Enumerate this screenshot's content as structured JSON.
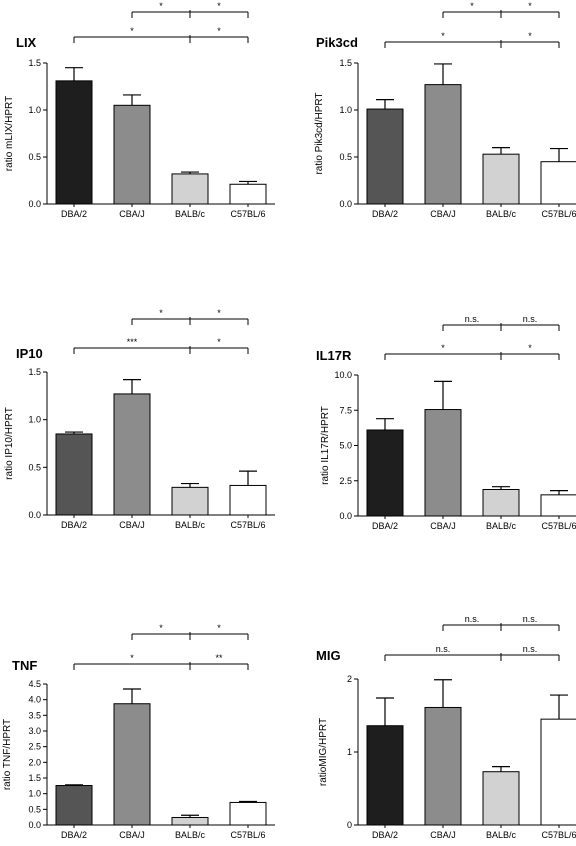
{
  "chart_data": [
    {
      "type": "bar",
      "title": "LIX",
      "ylabel": "ratio mLIX/HPRT",
      "categories": [
        "DBA/2",
        "CBA/J",
        "BALB/c",
        "C57BL/6"
      ],
      "values": [
        1.31,
        1.05,
        0.32,
        0.21
      ],
      "errors": [
        0.14,
        0.11,
        0.02,
        0.03
      ],
      "ylim": [
        0,
        1.5
      ],
      "yticks": [
        "0.0",
        "0.5",
        "1.0",
        "1.5"
      ],
      "ytick_values": [
        0,
        0.5,
        1.0,
        1.5
      ],
      "bar_colors": [
        "#1e1e1e",
        "#8c8c8c",
        "#d2d2d2",
        "#ffffff"
      ],
      "brackets": [
        {
          "from": 1,
          "mid": 2,
          "to": 3,
          "left_label": "*",
          "right_label": "*"
        },
        {
          "from": 0,
          "mid": 2,
          "to": 3,
          "left_label": "*",
          "right_label": "*"
        }
      ]
    },
    {
      "type": "bar",
      "title": "Pik3cd",
      "ylabel": "ratio Pik3cd/HPRT",
      "categories": [
        "DBA/2",
        "CBA/J",
        "BALB/c",
        "C57BL/6"
      ],
      "values": [
        1.01,
        1.27,
        0.53,
        0.45
      ],
      "errors": [
        0.1,
        0.22,
        0.07,
        0.14
      ],
      "ylim": [
        0,
        1.5
      ],
      "yticks": [
        "0.0",
        "0.5",
        "1.0",
        "1.5"
      ],
      "ytick_values": [
        0,
        0.5,
        1.0,
        1.5
      ],
      "bar_colors": [
        "#555555",
        "#8c8c8c",
        "#d2d2d2",
        "#ffffff"
      ],
      "brackets": [
        {
          "from": 1,
          "mid": 2,
          "to": 3,
          "left_label": "*",
          "right_label": "*"
        },
        {
          "from": 0,
          "mid": 2,
          "to": 3,
          "left_label": "*",
          "right_label": "*"
        }
      ]
    },
    {
      "type": "bar",
      "title": "IP10",
      "ylabel": "ratio IP10/HPRT",
      "categories": [
        "DBA/2",
        "CBA/J",
        "BALB/c",
        "C57BL/6"
      ],
      "values": [
        0.85,
        1.27,
        0.29,
        0.31
      ],
      "errors": [
        0.02,
        0.15,
        0.04,
        0.15
      ],
      "ylim": [
        0,
        1.5
      ],
      "yticks": [
        "0.0",
        "0.5",
        "1.0",
        "1.5"
      ],
      "ytick_values": [
        0,
        0.5,
        1.0,
        1.5
      ],
      "bar_colors": [
        "#555555",
        "#8c8c8c",
        "#d2d2d2",
        "#ffffff"
      ],
      "brackets": [
        {
          "from": 1,
          "mid": 2,
          "to": 3,
          "left_label": "*",
          "right_label": "*"
        },
        {
          "from": 0,
          "mid": 2,
          "to": 3,
          "left_label": "***",
          "right_label": "*"
        }
      ]
    },
    {
      "type": "bar",
      "title": "IL17R",
      "ylabel": "ratio IL17R/HPRT",
      "categories": [
        "DBA/2",
        "CBA/J",
        "BALB/c",
        "C57BL/6"
      ],
      "values": [
        6.1,
        7.55,
        1.88,
        1.5
      ],
      "errors": [
        0.8,
        2.0,
        0.2,
        0.3
      ],
      "ylim": [
        0,
        10
      ],
      "yticks": [
        "0.0",
        "2.5",
        "5.0",
        "7.5",
        "10.0"
      ],
      "ytick_values": [
        0,
        2.5,
        5.0,
        7.5,
        10.0
      ],
      "bar_colors": [
        "#1e1e1e",
        "#8c8c8c",
        "#d2d2d2",
        "#ffffff"
      ],
      "brackets": [
        {
          "from": 1,
          "mid": 2,
          "to": 3,
          "left_label": "n.s.",
          "right_label": "n.s."
        },
        {
          "from": 0,
          "mid": 2,
          "to": 3,
          "left_label": "*",
          "right_label": "*"
        }
      ]
    },
    {
      "type": "bar",
      "title": "TNF",
      "ylabel": "ratio TNF/HPRT",
      "categories": [
        "DBA/2",
        "CBA/J",
        "BALB/c",
        "C57BL/6"
      ],
      "values": [
        1.26,
        3.87,
        0.24,
        0.72
      ],
      "errors": [
        0.02,
        0.47,
        0.07,
        0.03
      ],
      "ylim": [
        0,
        4.5
      ],
      "yticks": [
        "0.0",
        "0.5",
        "1.0",
        "1.5",
        "2.0",
        "2.5",
        "3.0",
        "3.5",
        "4.0",
        "4.5"
      ],
      "ytick_values": [
        0,
        0.5,
        1.0,
        1.5,
        2.0,
        2.5,
        3.0,
        3.5,
        4.0,
        4.5
      ],
      "bar_colors": [
        "#555555",
        "#8c8c8c",
        "#d2d2d2",
        "#ffffff"
      ],
      "brackets": [
        {
          "from": 1,
          "mid": 2,
          "to": 3,
          "left_label": "*",
          "right_label": "*"
        },
        {
          "from": 0,
          "mid": 2,
          "to": 3,
          "left_label": "*",
          "right_label": "**"
        }
      ]
    },
    {
      "type": "bar",
      "title": "MIG",
      "ylabel": "ratioMIG/HPRT",
      "categories": [
        "DBA/2",
        "CBA/J",
        "BALB/c",
        "C57BL/6"
      ],
      "values": [
        1.36,
        1.61,
        0.73,
        1.45
      ],
      "errors": [
        0.38,
        0.38,
        0.07,
        0.33
      ],
      "ylim": [
        0,
        2
      ],
      "yticks": [
        "0",
        "1",
        "2"
      ],
      "ytick_values": [
        0,
        1,
        2
      ],
      "bar_colors": [
        "#1e1e1e",
        "#8c8c8c",
        "#d2d2d2",
        "#ffffff"
      ],
      "brackets": [
        {
          "from": 1,
          "mid": 2,
          "to": 3,
          "left_label": "n.s.",
          "right_label": "n.s."
        },
        {
          "from": 0,
          "mid": 2,
          "to": 3,
          "left_label": "n.s.",
          "right_label": "n.s."
        }
      ]
    }
  ]
}
